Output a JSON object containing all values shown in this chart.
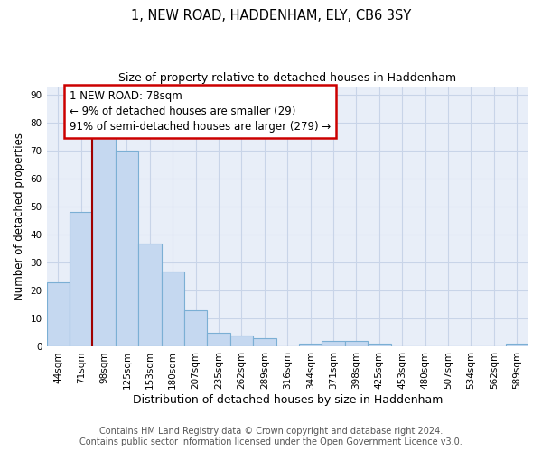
{
  "title": "1, NEW ROAD, HADDENHAM, ELY, CB6 3SY",
  "subtitle": "Size of property relative to detached houses in Haddenham",
  "xlabel": "Distribution of detached houses by size in Haddenham",
  "ylabel": "Number of detached properties",
  "bar_labels": [
    "44sqm",
    "71sqm",
    "98sqm",
    "125sqm",
    "153sqm",
    "180sqm",
    "207sqm",
    "235sqm",
    "262sqm",
    "289sqm",
    "316sqm",
    "344sqm",
    "371sqm",
    "398sqm",
    "425sqm",
    "453sqm",
    "480sqm",
    "507sqm",
    "534sqm",
    "562sqm",
    "589sqm"
  ],
  "bar_values": [
    23,
    48,
    75,
    70,
    37,
    27,
    13,
    5,
    4,
    3,
    0,
    1,
    2,
    2,
    1,
    0,
    0,
    0,
    0,
    0,
    1
  ],
  "bar_color": "#c5d8f0",
  "bar_edge_color": "#7bafd4",
  "vline_x": 1.5,
  "vline_color": "#a00000",
  "annotation_text": "1 NEW ROAD: 78sqm\n← 9% of detached houses are smaller (29)\n91% of semi-detached houses are larger (279) →",
  "annotation_box_color": "white",
  "annotation_box_edge_color": "#cc0000",
  "ylim": [
    0,
    93
  ],
  "yticks": [
    0,
    10,
    20,
    30,
    40,
    50,
    60,
    70,
    80,
    90
  ],
  "grid_color": "#c8d4e8",
  "bg_color": "#e8eef8",
  "footer": "Contains HM Land Registry data © Crown copyright and database right 2024.\nContains public sector information licensed under the Open Government Licence v3.0.",
  "title_fontsize": 10.5,
  "subtitle_fontsize": 9,
  "xlabel_fontsize": 9,
  "ylabel_fontsize": 8.5,
  "tick_fontsize": 7.5,
  "annotation_fontsize": 8.5,
  "footer_fontsize": 7
}
